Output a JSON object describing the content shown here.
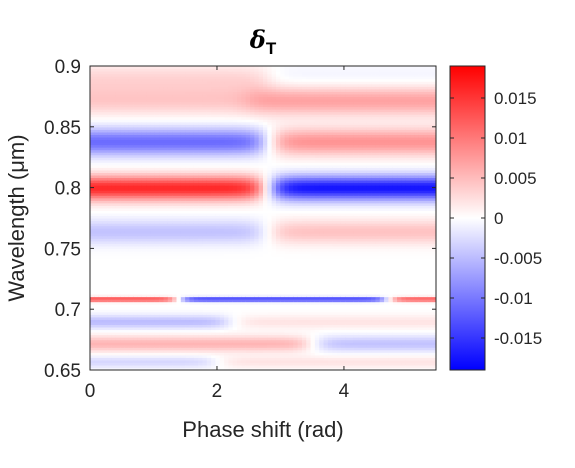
{
  "chart_data": {
    "type": "heatmap",
    "title": {
      "symbol": "δ",
      "subscript": "T"
    },
    "xlabel": "Phase shift (rad)",
    "ylabel": "Wavelength (μm)",
    "xlim": [
      0,
      5.45
    ],
    "ylim": [
      0.65,
      0.9
    ],
    "xticks": [
      0,
      2,
      4
    ],
    "xtick_labels": [
      "0",
      "2",
      "4"
    ],
    "yticks": [
      0.65,
      0.7,
      0.75,
      0.8,
      0.85,
      0.9
    ],
    "ytick_labels": [
      "0.65",
      "0.7",
      "0.75",
      "0.8",
      "0.85",
      "0.9"
    ],
    "colorbar": {
      "colormap": "blue-white-red",
      "low_color": "#0000ff",
      "mid_color": "#ffffff",
      "high_color": "#ff0000",
      "clim": [
        -0.019,
        0.019
      ],
      "ticks": [
        0.015,
        0.01,
        0.005,
        0,
        -0.005,
        -0.01,
        -0.015
      ],
      "tick_labels": [
        "0.015",
        "0.01",
        "0.005",
        "0",
        "-0.005",
        "-0.01",
        "-0.015"
      ]
    },
    "bands": [
      {
        "center_wavelength": 0.89,
        "width": 0.012,
        "left_value": 0.003,
        "right_value": -0.001,
        "transition_phase": 2.8
      },
      {
        "center_wavelength": 0.872,
        "width": 0.012,
        "left_value": 0.004,
        "right_value": 0.007,
        "transition_phase": 2.5
      },
      {
        "center_wavelength": 0.838,
        "width": 0.011,
        "left_value": -0.011,
        "right_value": 0.008,
        "transition_phase": 2.8
      },
      {
        "center_wavelength": 0.8,
        "width": 0.01,
        "left_value": 0.016,
        "right_value": -0.0175,
        "transition_phase": 2.8
      },
      {
        "center_wavelength": 0.764,
        "width": 0.01,
        "left_value": -0.0045,
        "right_value": 0.0045,
        "transition_phase": 2.8
      },
      {
        "center_wavelength": 0.7085,
        "width": 0.0018,
        "left_value": 0.015,
        "right_value": -0.016,
        "transition_phase": 1.4,
        "second_transition_phase": 4.7,
        "far_right_value": 0.014
      },
      {
        "center_wavelength": 0.69,
        "width": 0.0055,
        "left_value": -0.005,
        "right_value": 0.002,
        "transition_phase": 2.2
      },
      {
        "center_wavelength": 0.672,
        "width": 0.0065,
        "left_value": 0.0055,
        "right_value": -0.0045,
        "transition_phase": 3.5
      },
      {
        "center_wavelength": 0.657,
        "width": 0.005,
        "left_value": -0.003,
        "right_value": 0.002,
        "transition_phase": 2.0
      }
    ]
  }
}
